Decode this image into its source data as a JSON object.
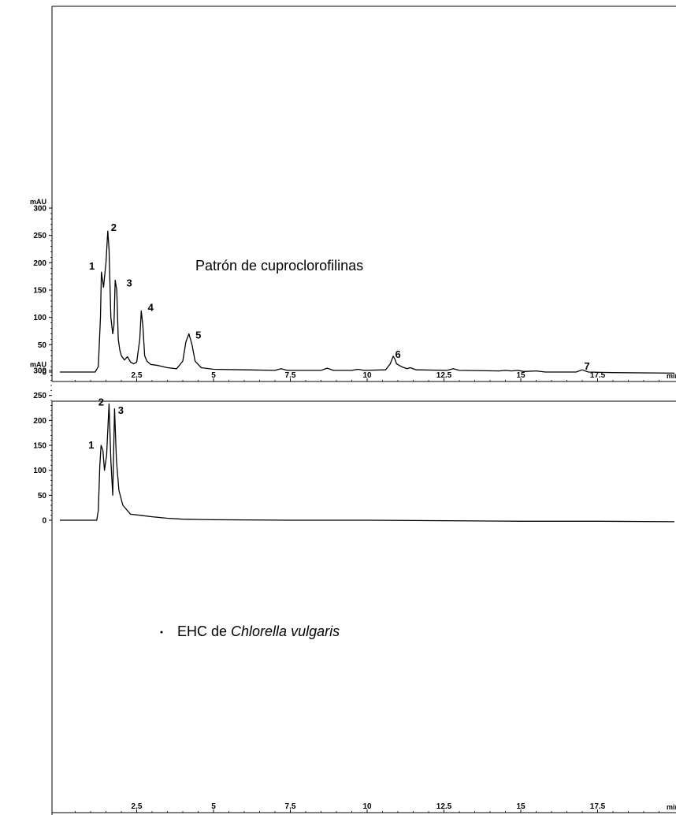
{
  "chart_data": [
    {
      "type": "line",
      "title": "Patrón de cuproclorofilinas",
      "ylabel": "mAU",
      "xlabel": "min",
      "xlim": [
        0,
        20
      ],
      "ylim": [
        -12,
        310
      ],
      "xticks": [
        "2.5",
        "5",
        "7.5",
        "10",
        "12.5",
        "15",
        "17.5"
      ],
      "yticks": [
        "0",
        "50",
        "100",
        "150",
        "200",
        "250",
        "300"
      ],
      "grid": false,
      "peak_labels": [
        {
          "label": "1",
          "x": 1.35,
          "y": 183
        },
        {
          "label": "2",
          "x": 1.6,
          "y": 258
        },
        {
          "label": "3",
          "x": 1.9,
          "y": 168
        },
        {
          "label": "4",
          "x": 2.7,
          "y": 112
        },
        {
          "label": "5",
          "x": 4.2,
          "y": 70
        },
        {
          "label": "6",
          "x": 10.9,
          "y": 29
        },
        {
          "label": "7",
          "x": 17.0,
          "y": 4
        }
      ],
      "series": [
        {
          "x": [
            0,
            1.15,
            1.25,
            1.32,
            1.35,
            1.42,
            1.5,
            1.56,
            1.6,
            1.66,
            1.72,
            1.76,
            1.8,
            1.85,
            1.9,
            1.95,
            2.0,
            2.1,
            2.2,
            2.3,
            2.4,
            2.5,
            2.6,
            2.65,
            2.7,
            2.76,
            2.83,
            2.95,
            3.2,
            3.5,
            3.8,
            4.0,
            4.1,
            4.2,
            4.3,
            4.4,
            4.6,
            5.0,
            6.0,
            7.0,
            7.2,
            7.4,
            8.5,
            8.7,
            8.9,
            9.5,
            9.7,
            9.9,
            10.6,
            10.75,
            10.85,
            10.9,
            10.96,
            11.05,
            11.15,
            11.3,
            11.4,
            11.6,
            12.6,
            12.8,
            13.0,
            14.3,
            14.5,
            14.7,
            14.9,
            15.1,
            15.5,
            15.8,
            16.8,
            17.0,
            17.2,
            18.0,
            20.0
          ],
          "y": [
            0,
            0,
            10,
            100,
            183,
            155,
            200,
            258,
            225,
            100,
            70,
            85,
            168,
            150,
            60,
            40,
            30,
            22,
            28,
            18,
            15,
            18,
            60,
            112,
            85,
            30,
            20,
            14,
            12,
            8,
            6,
            20,
            55,
            70,
            50,
            20,
            8,
            5,
            4,
            3,
            6,
            3,
            3,
            7,
            3,
            3,
            5,
            3,
            4,
            15,
            29,
            24,
            15,
            12,
            9,
            6,
            8,
            4,
            3,
            6,
            3,
            2,
            3,
            2,
            3,
            1,
            2,
            0,
            0,
            4,
            0,
            -1,
            -2
          ]
        }
      ]
    },
    {
      "type": "line",
      "title": "EHC de Chlorella vulgaris",
      "title_plain": "EHC de ",
      "title_italic": "Chlorella vulgaris",
      "ylabel": "mAU",
      "xlabel": "min",
      "xlim": [
        0,
        20
      ],
      "ylim": [
        -12,
        310
      ],
      "xticks": [
        "2.5",
        "5",
        "7.5",
        "10",
        "12.5",
        "15",
        "17.5"
      ],
      "yticks": [
        "0",
        "50",
        "100",
        "150",
        "200",
        "250",
        "300"
      ],
      "grid": false,
      "peak_labels": [
        {
          "label": "1",
          "x": 1.33,
          "y": 150
        },
        {
          "label": "2",
          "x": 1.6,
          "y": 233
        },
        {
          "label": "3",
          "x": 1.78,
          "y": 223
        }
      ],
      "series": [
        {
          "x": [
            0,
            1.2,
            1.25,
            1.3,
            1.34,
            1.4,
            1.45,
            1.52,
            1.6,
            1.66,
            1.72,
            1.78,
            1.84,
            1.92,
            2.05,
            2.3,
            2.6,
            3.0,
            3.5,
            4.0,
            5.0,
            7.5,
            10,
            12.5,
            15,
            17.5,
            20
          ],
          "y": [
            0,
            0,
            20,
            110,
            150,
            140,
            100,
            130,
            233,
            120,
            50,
            223,
            120,
            60,
            30,
            12,
            10,
            7,
            4,
            2,
            1,
            0,
            0,
            -1,
            -2,
            -2,
            -3
          ]
        }
      ]
    }
  ]
}
